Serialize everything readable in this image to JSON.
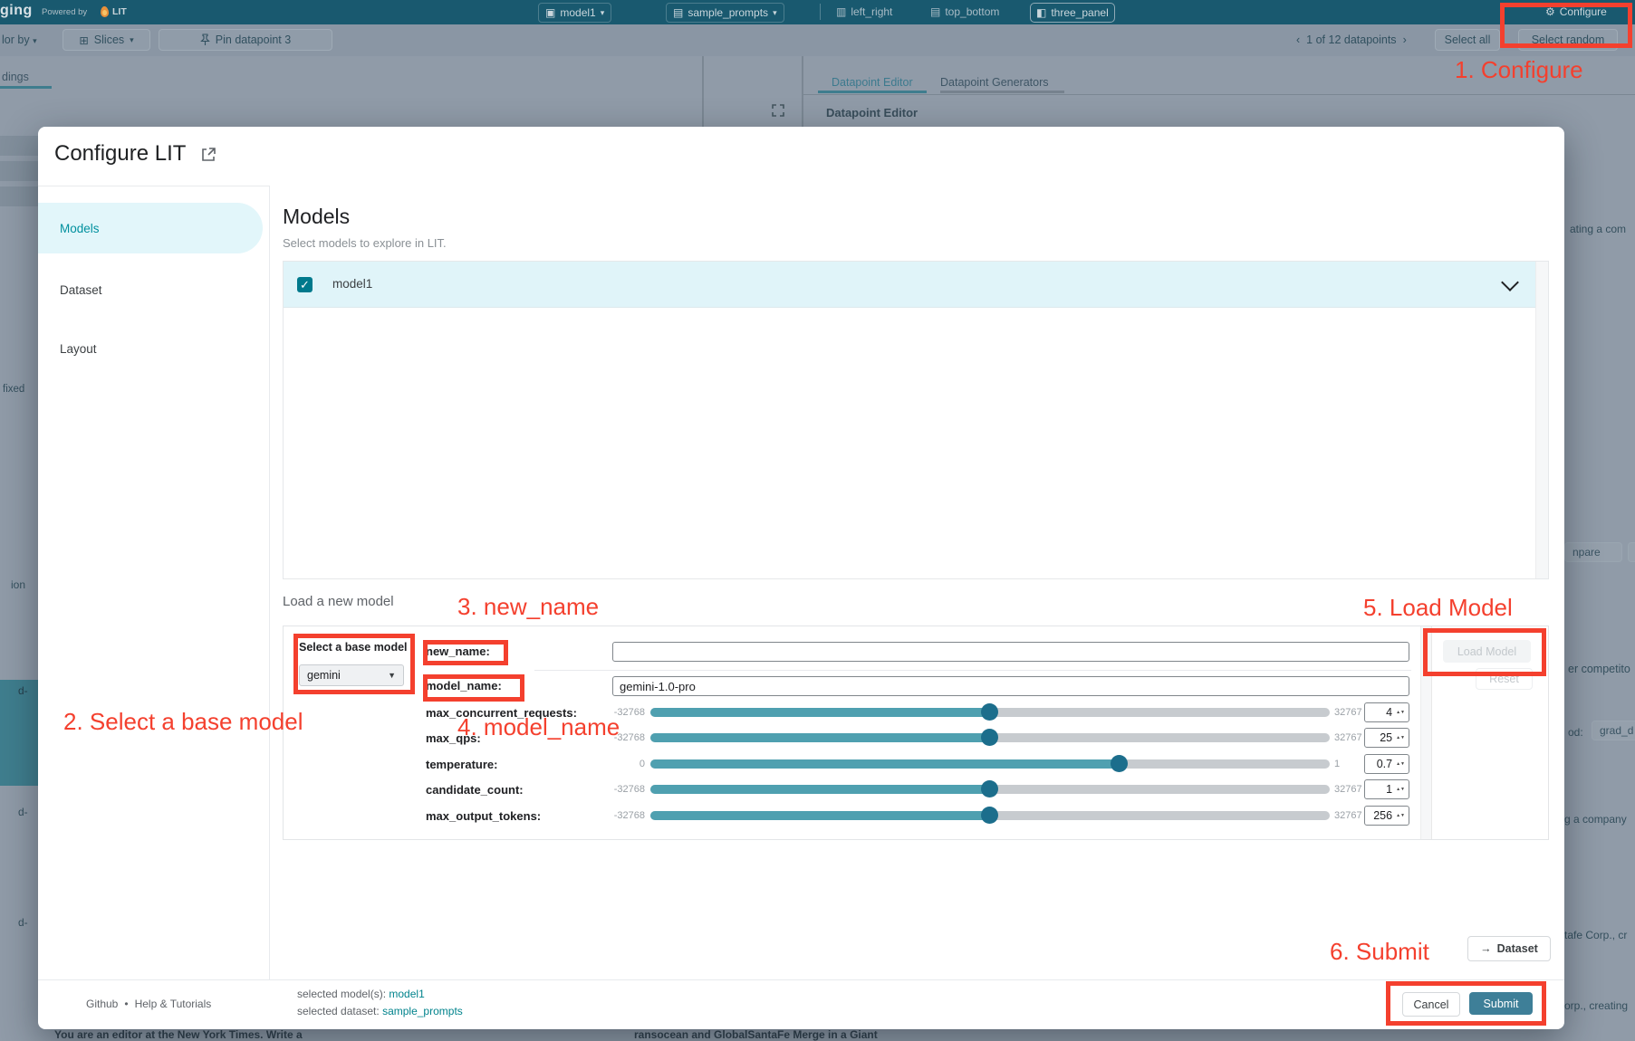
{
  "annotations": {
    "step1": "1. Configure",
    "step2": "2. Select a base model",
    "step3": "3. new_name",
    "step4": "4. model_name",
    "step5": "5. Load Model",
    "step6": "6. Submit",
    "color": "#F4402E"
  },
  "top_bar": {
    "logo_fragment": "ging",
    "powered_by": "Powered by",
    "lit_label": "LIT",
    "model_chip": "model1",
    "dataset_chip": "sample_prompts",
    "layout_left_right": "left_right",
    "layout_top_bottom": "top_bottom",
    "layout_three_panel": "three_panel",
    "configure_label": "Configure",
    "caret": "▾"
  },
  "toolbar": {
    "colorby_fragment": "lor by",
    "slices_label": "Slices",
    "pin_label": "Pin datapoint 3",
    "prev": "‹",
    "pagination": "1 of 12 datapoints",
    "next": "›",
    "select_all": "Select all",
    "select_random": "Select random"
  },
  "background": {
    "left_tab_fragment": "dings",
    "frag_fixed": "fixed",
    "frag_ion": "ion",
    "frag_d1": "d-",
    "frag_d2": "d-",
    "frag_d3": "d-",
    "tab_editor": "Datapoint Editor",
    "tab_generators": "Datapoint Generators",
    "panel_title": "Datapoint Editor",
    "frag_ating": "ating a com",
    "frag_npare": "npare",
    "frag_p": "P",
    "frag_competito": "er competito",
    "frag_od": "od:",
    "frag_grad": "grad_d",
    "frag_company": "g a company",
    "frag_tafe": "tafe Corp., cr",
    "frag_orp": "orp., creating",
    "bottom_left_fragment": "You are an editor at the New York Times. Write a",
    "bottom_right_fragment": "ransocean and GlobalSantaFe Merge in a Giant"
  },
  "modal": {
    "title": "Configure LIT",
    "sidebar": {
      "models": "Models",
      "dataset": "Dataset",
      "layout": "Layout"
    },
    "section": {
      "heading": "Models",
      "subheading": "Select models to explore in LIT.",
      "model_row_label": "model1"
    },
    "load_new_model": {
      "heading": "Load a new model",
      "base_model_label": "Select a base model",
      "base_model_value": "gemini",
      "new_name_label": "new_name:",
      "new_name_value": "",
      "model_name_label": "model_name:",
      "model_name_value": "gemini-1.0-pro",
      "sliders": [
        {
          "label": "max_concurrent_requests:",
          "min": "-32768",
          "max": "32767",
          "value": "4",
          "percent": 50
        },
        {
          "label": "max_qps:",
          "min": "-32768",
          "max": "32767",
          "value": "25",
          "percent": 50
        },
        {
          "label": "temperature:",
          "min": "0",
          "max": "1",
          "value": "0.7",
          "percent": 69
        },
        {
          "label": "candidate_count:",
          "min": "-32768",
          "max": "32767",
          "value": "1",
          "percent": 50
        },
        {
          "label": "max_output_tokens:",
          "min": "-32768",
          "max": "32767",
          "value": "256",
          "percent": 50
        }
      ],
      "load_button": "Load Model",
      "reset_button": "Reset"
    },
    "dataset_nav": {
      "arrow": "→",
      "label": "Dataset"
    },
    "footer": {
      "github": "Github",
      "separator": "•",
      "help": "Help & Tutorials",
      "selected_model_label": "selected model(s):",
      "selected_model_value": "model1",
      "selected_dataset_label": "selected dataset:",
      "selected_dataset_value": "sample_prompts",
      "cancel": "Cancel",
      "submit": "Submit"
    }
  },
  "colors": {
    "topbar": "#19596F",
    "scrim": "#909BA8",
    "accent_teal": "#00909E",
    "slider_fill": "#4FA0B0",
    "slider_thumb": "#1C6E8C",
    "submit": "#3E7F98",
    "annotation": "#F4402E"
  }
}
